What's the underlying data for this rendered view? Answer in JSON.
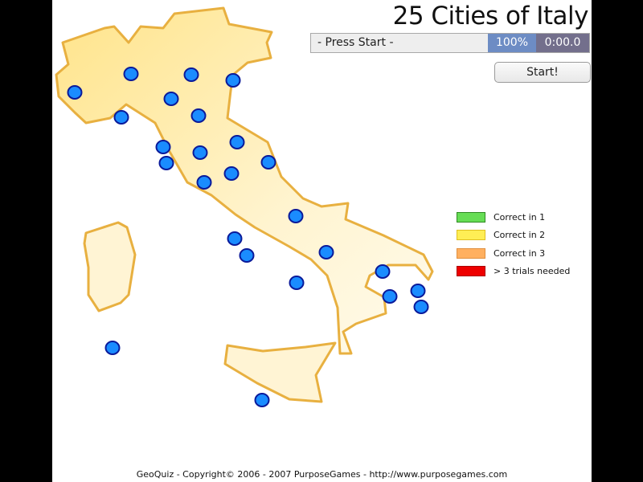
{
  "title": "25 Cities of Italy",
  "status": {
    "message": "- Press Start -",
    "percent": "100%",
    "timer": "0:00.0"
  },
  "start_button": "Start!",
  "legend": [
    {
      "label": "Correct in 1",
      "color": "#66dd55",
      "border": "#2f8a22"
    },
    {
      "label": "Correct in 2",
      "color": "#ffee55",
      "border": "#e0c020"
    },
    {
      "label": "Correct in 3",
      "color": "#ffb060",
      "border": "#e09040"
    },
    {
      "label": "> 3 trials needed",
      "color": "#ee0000",
      "border": "#aa0000"
    }
  ],
  "footer": "GeoQuiz - Copyright© 2006 - 2007 PurposeGames - http://www.purposegames.com",
  "colors": {
    "land_fill": "#fff0c0",
    "land_stroke": "#e8b040",
    "city_fill": "#1a8cff",
    "city_stroke": "#0a1a9a"
  },
  "city_marker_count": 25
}
